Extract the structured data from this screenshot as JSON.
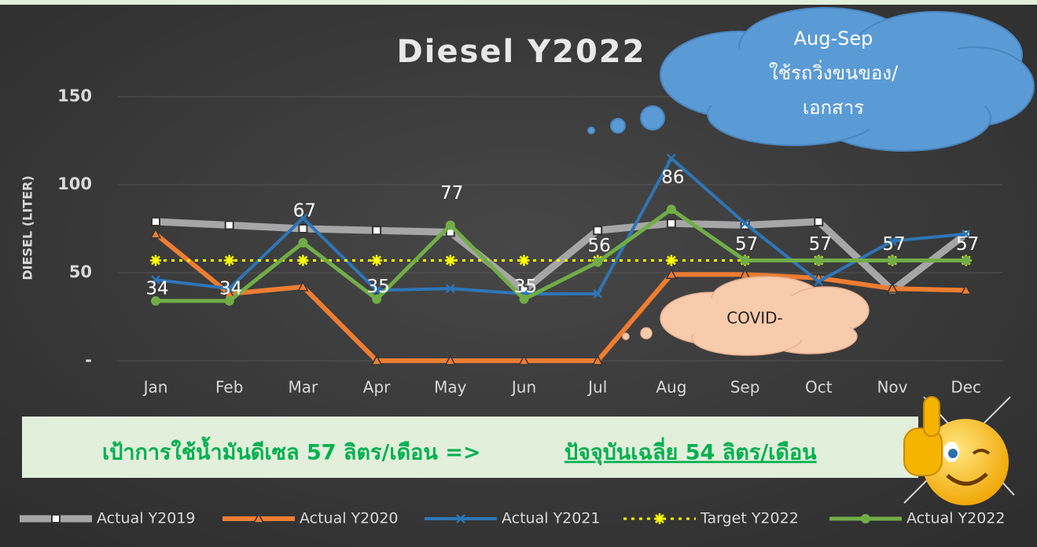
{
  "chart_data": {
    "type": "line",
    "title": "Diesel Y2022",
    "y_label": "DIESEL (LITER)",
    "categories": [
      "Jan",
      "Feb",
      "Mar",
      "Apr",
      "May",
      "Jun",
      "Jul",
      "Aug",
      "Sep",
      "Oct",
      "Nov",
      "Dec"
    ],
    "ylim": [
      0,
      150
    ],
    "yticks": [
      {
        "value": 0,
        "label": "-"
      },
      50,
      100,
      150
    ],
    "grid": true,
    "legend": "bottom",
    "series": [
      {
        "name": "Actual Y2019",
        "color": "#a6a6a6",
        "marker": "square",
        "values": [
          79,
          77,
          75,
          74,
          73,
          40,
          74,
          78,
          77,
          79,
          40,
          72
        ]
      },
      {
        "name": "Actual Y2020",
        "color": "#ed7d31",
        "marker": "triangle",
        "values": [
          72,
          38,
          42,
          0,
          0,
          0,
          0,
          49,
          49,
          47,
          41,
          40
        ]
      },
      {
        "name": "Actual Y2021",
        "color": "#2e75b6",
        "marker": "x",
        "values": [
          46,
          41,
          81,
          40,
          41,
          38,
          38,
          115,
          78,
          45,
          68,
          72
        ]
      },
      {
        "name": "Target Y2022",
        "color": "#ffff00",
        "marker": "star",
        "dashed": true,
        "values": [
          57,
          57,
          57,
          57,
          57,
          57,
          57,
          57,
          57,
          57,
          57,
          57
        ]
      },
      {
        "name": "Actual Y2022",
        "color": "#70ad47",
        "marker": "circle",
        "data_labels": true,
        "values": [
          34,
          34,
          67,
          35,
          77,
          35,
          56,
          86,
          57,
          57,
          57,
          57
        ]
      }
    ],
    "annotations": {
      "cloud_top": [
        "Aug-Sep",
        "ใช้รถวิ่งขนของ/",
        "เอกสาร"
      ],
      "cloud_covid": "COVID-",
      "banner": {
        "target": "เป้าการใช้น้ำมันดีเซล 57 ลิตร/เดือน  =>",
        "current": "ปัจจุบันเฉลี่ย 54 ลิตร/เดือน"
      }
    }
  }
}
